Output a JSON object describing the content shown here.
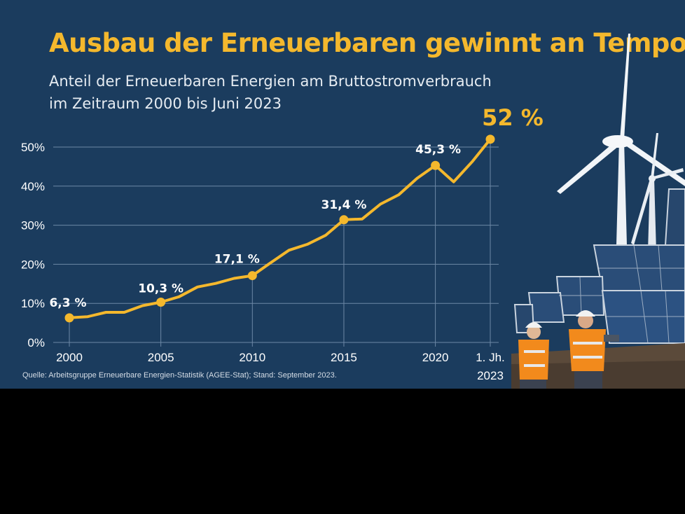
{
  "title": "Ausbau der Erneuerbaren gewinnt an Tempo",
  "subtitle_line1": "Anteil der Erneuerbaren Energien am Bruttostromverbrauch",
  "subtitle_line2": "im Zeitraum 2000 bis Juni 2023",
  "source": "Quelle: Arbeitsgruppe Erneuerbare Energien-Statistik (AGEE-Stat); Stand: September 2023.",
  "colors": {
    "background": "#1b3c5e",
    "accent": "#f4b82d",
    "text": "#ffffff",
    "grid": "#6d88a6"
  },
  "chart_data": {
    "type": "line",
    "title": "Ausbau der Erneuerbaren gewinnt an Tempo",
    "ylim": [
      0,
      50
    ],
    "y_ticks": [
      0,
      10,
      20,
      30,
      40,
      50
    ],
    "y_tick_labels": [
      "0%",
      "10%",
      "20%",
      "30%",
      "40%",
      "50%"
    ],
    "x_ticks": [
      2000,
      2005,
      2010,
      2015,
      2020,
      2023
    ],
    "x_tick_labels": [
      [
        "2000"
      ],
      [
        "2005"
      ],
      [
        "2010"
      ],
      [
        "2015"
      ],
      [
        "2020"
      ],
      [
        "1. Jh.",
        "2023"
      ]
    ],
    "grid": true,
    "series": [
      {
        "x": [
          2000,
          2001,
          2002,
          2003,
          2004,
          2005,
          2006,
          2007,
          2008,
          2009,
          2010,
          2011,
          2012,
          2013,
          2014,
          2015,
          2016,
          2017,
          2018,
          2019,
          2020,
          2021,
          2022,
          2023
        ],
        "y": [
          6.3,
          6.6,
          7.7,
          7.7,
          9.4,
          10.3,
          11.7,
          14.2,
          15.1,
          16.4,
          17.1,
          20.4,
          23.6,
          25.1,
          27.4,
          31.4,
          31.6,
          35.4,
          37.8,
          42.0,
          45.3,
          41.1,
          46.2,
          52.0
        ]
      }
    ],
    "highlighted_points": [
      {
        "x": 2000,
        "y": 6.3,
        "label": "6,3 %"
      },
      {
        "x": 2005,
        "y": 10.3,
        "label": "10,3 %"
      },
      {
        "x": 2010,
        "y": 17.1,
        "label": "17,1 %"
      },
      {
        "x": 2015,
        "y": 31.4,
        "label": "31,4 %"
      },
      {
        "x": 2020,
        "y": 45.3,
        "label": "45,3 %"
      },
      {
        "x": 2023,
        "y": 52.0,
        "label": "52 %"
      }
    ]
  },
  "photo": {
    "description_icons": [
      "wind-turbine-icon",
      "solar-panel-icon",
      "worker-icon"
    ]
  }
}
